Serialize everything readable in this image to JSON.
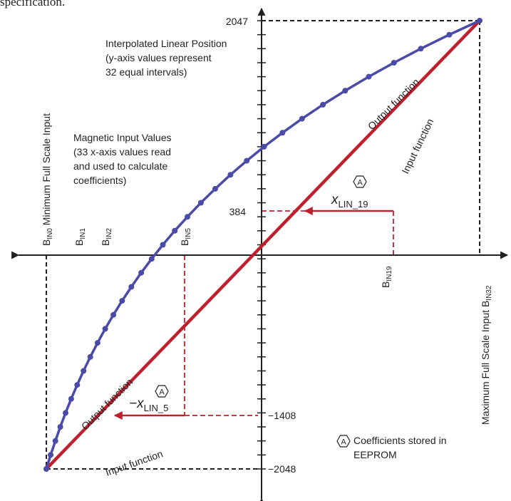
{
  "top_fragment": "specification.",
  "y_ticks": {
    "top": "2047",
    "upper": "384",
    "lower": "−1408",
    "bottom": "−2048"
  },
  "notes": {
    "linear_position": [
      "Interpolated Linear Position",
      "(y-axis values represent",
      "32 equal intervals)"
    ],
    "magnetic_input": [
      "Magnetic Input Values",
      "(33 x-axis values read",
      "and used to calculate",
      "coefficients)"
    ],
    "coefficients": [
      "Coefficients stored in",
      "EEPROM"
    ]
  },
  "labels": {
    "min_scale": "Minimum Full Scale Input",
    "max_scale": "Maximum Full Scale Input B",
    "output_fn_upper": "Output function",
    "output_fn_lower": "Output function",
    "input_fn_upper": "Input function",
    "input_fn_lower": "Input function",
    "marker": "A",
    "xlin19_main": "x",
    "xlin19_sub": "LIN_19",
    "xlin5_main": "−x",
    "xlin5_sub": "LIN_5"
  },
  "b_labels": [
    {
      "main": "B",
      "sub": "IN0"
    },
    {
      "main": "B",
      "sub": "IN1"
    },
    {
      "main": "B",
      "sub": "IN2"
    },
    {
      "main": "B",
      "sub": "IN5"
    },
    {
      "main": "B",
      "sub": "IN19"
    },
    {
      "main": "B",
      "sub": "IN32"
    }
  ],
  "colors": {
    "output": "#c0202e",
    "input": "#4a4aa8",
    "axis": "#231f20"
  }
}
